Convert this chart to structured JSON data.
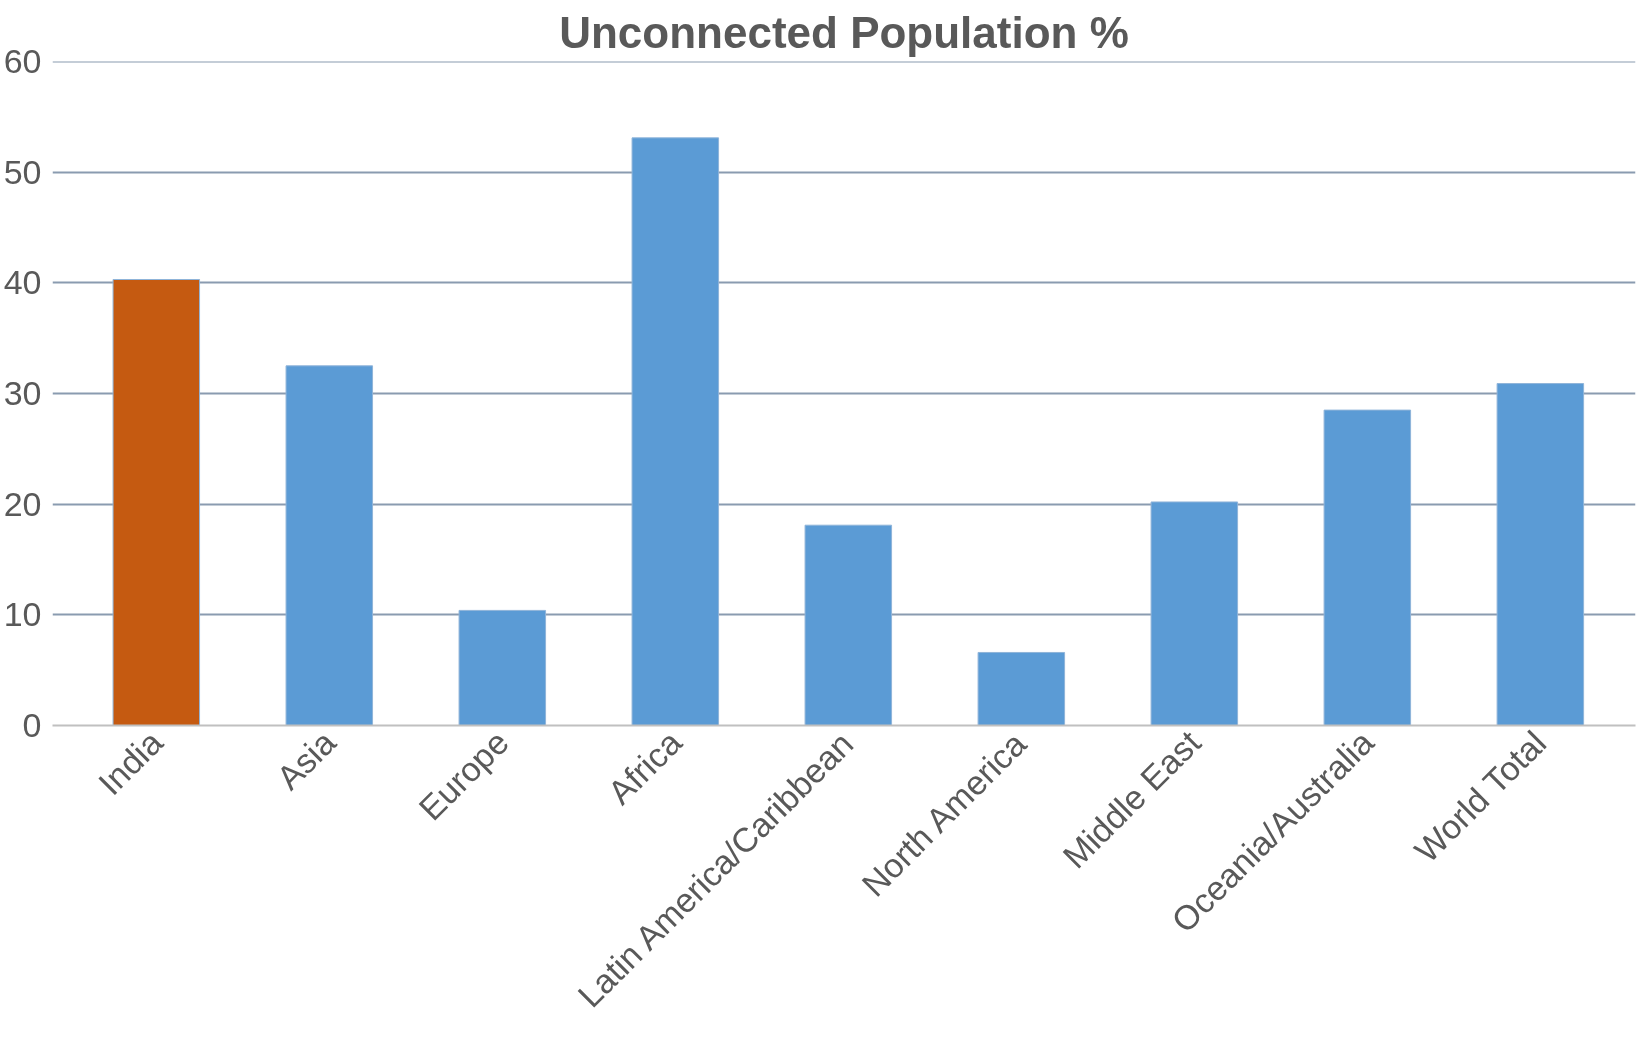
{
  "chart_data": {
    "type": "bar",
    "title": "Unconnected Population %",
    "categories": [
      "India",
      "Asia",
      "Europe",
      "Africa",
      "Latin America/Caribbean",
      "North America",
      "Middle East",
      "Oceania/Australia",
      "World Total"
    ],
    "values": [
      40.3,
      32.5,
      10.4,
      53.1,
      18.1,
      6.6,
      20.2,
      28.5,
      30.9
    ],
    "colors": [
      "#c55a11",
      "#5b9bd5",
      "#5b9bd5",
      "#5b9bd5",
      "#5b9bd5",
      "#5b9bd5",
      "#5b9bd5",
      "#5b9bd5",
      "#5b9bd5"
    ],
    "ylim": [
      0,
      60
    ],
    "yticks": [
      0,
      10,
      20,
      30,
      40,
      50,
      60
    ],
    "grid": "y"
  }
}
